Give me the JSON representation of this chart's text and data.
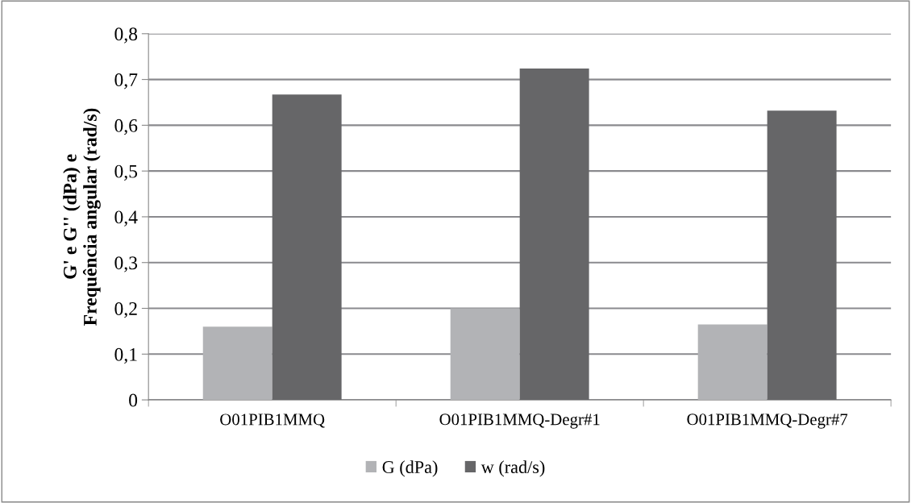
{
  "chart_data": {
    "type": "bar",
    "ylabel": "G' e G'' (dPa) e\nFrequência angular (rad/s)",
    "categories": [
      "O01PIB1MMQ",
      "O01PIB1MMQ-Degr#1",
      "O01PIB1MMQ-Degr#7"
    ],
    "series": [
      {
        "name": "G (dPa)",
        "color": "#b2b3b6",
        "values": [
          0.16,
          0.2,
          0.165
        ]
      },
      {
        "name": "w (rad/s)",
        "color": "#666668",
        "values": [
          0.667,
          0.724,
          0.632
        ]
      }
    ],
    "ylim": [
      0,
      0.8
    ],
    "yticks": [
      {
        "value": 0,
        "label": "0"
      },
      {
        "value": 0.1,
        "label": "0,1"
      },
      {
        "value": 0.2,
        "label": "0,2"
      },
      {
        "value": 0.3,
        "label": "0,3"
      },
      {
        "value": 0.4,
        "label": "0,4"
      },
      {
        "value": 0.5,
        "label": "0,5"
      },
      {
        "value": 0.6,
        "label": "0,6"
      },
      {
        "value": 0.7,
        "label": "0,7"
      },
      {
        "value": 0.8,
        "label": "0,8"
      }
    ],
    "grid": "y",
    "legend": "bottom"
  }
}
